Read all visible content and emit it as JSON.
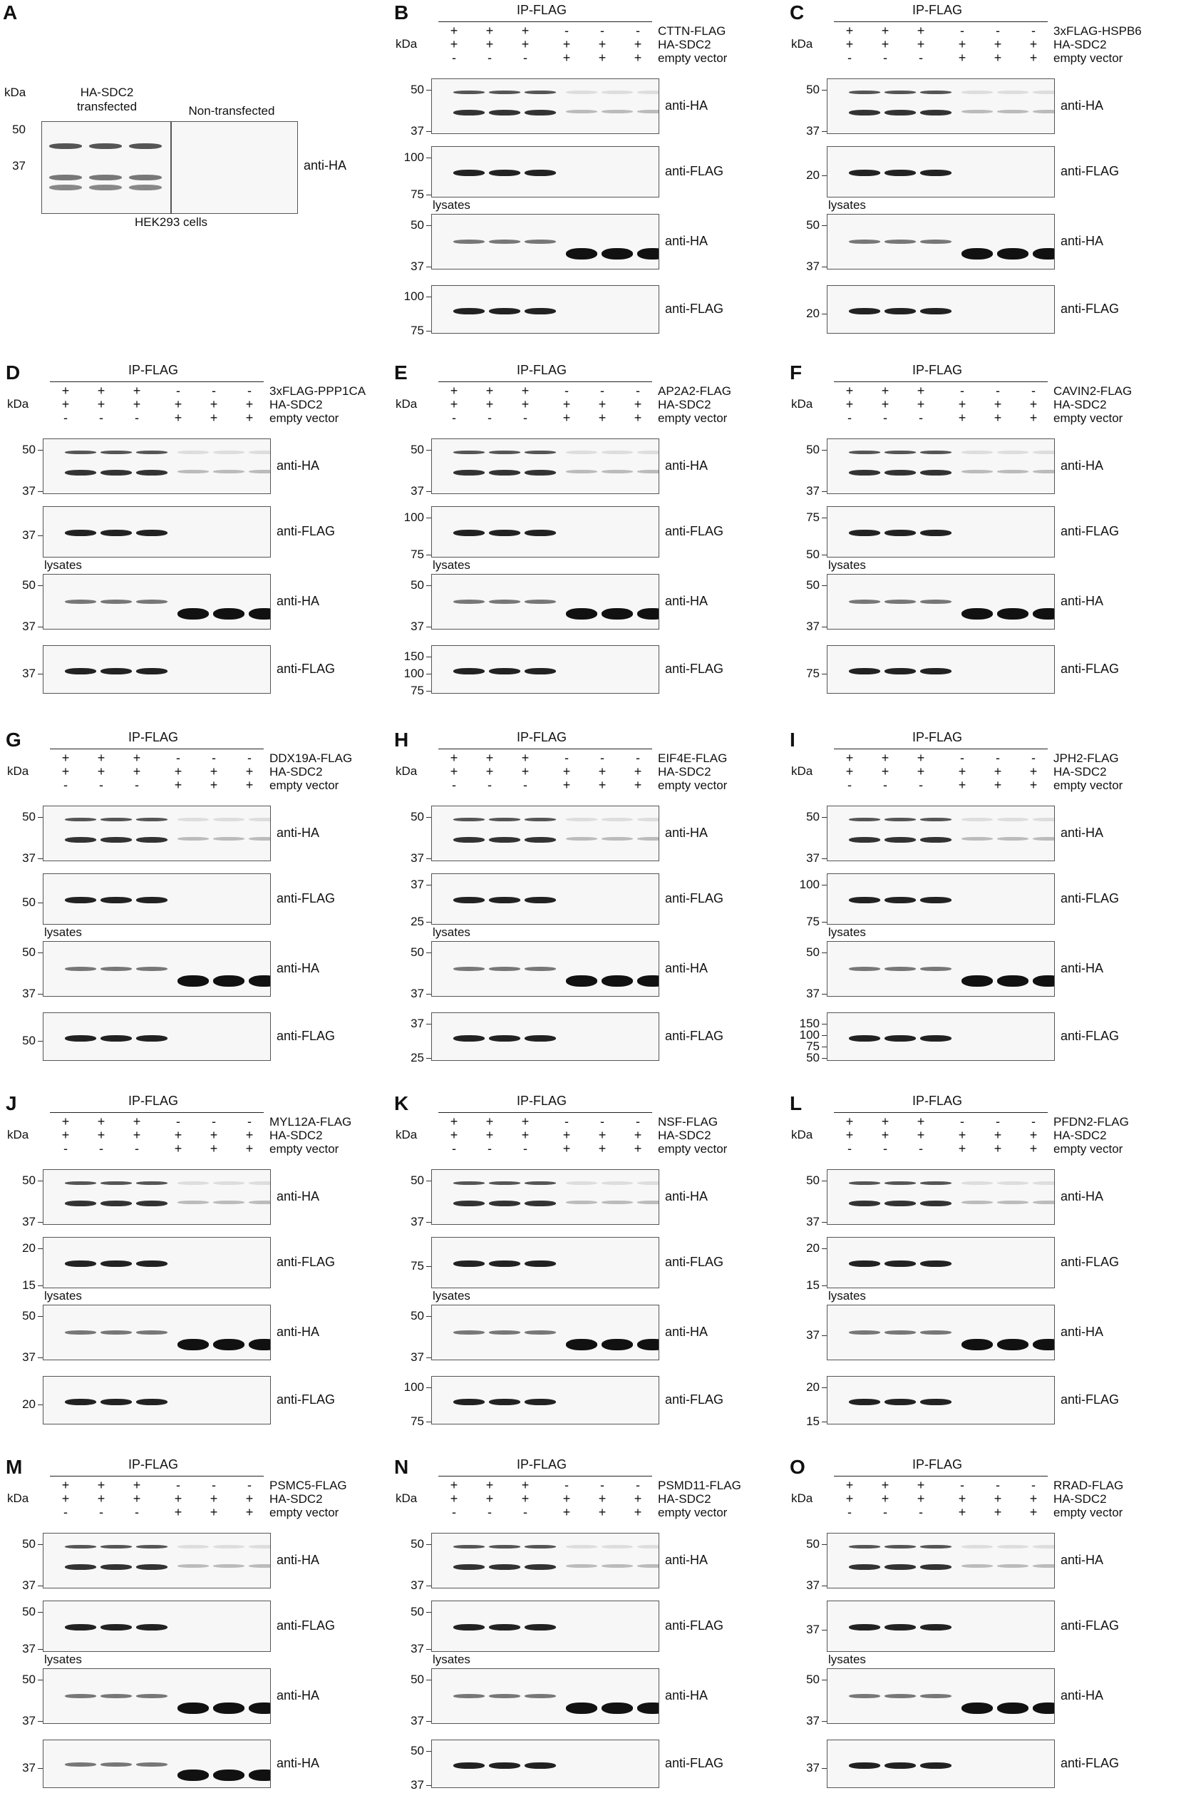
{
  "panels": [
    {
      "letter": "A",
      "kda": "kDa",
      "groups": [
        "HA-SDC2\ntransfected",
        "Non-transfected"
      ],
      "markers": [
        "50",
        "37"
      ],
      "antibody": "anti-HA",
      "caption": "HEK293 cells"
    },
    {
      "letter": "B",
      "ip": "IP-FLAG",
      "kda": "kDa",
      "conditions": [
        {
          "label": "CTTN-FLAG",
          "signs": [
            "+",
            "+",
            "+",
            "-",
            "-",
            "-"
          ]
        },
        {
          "label": "HA-SDC2",
          "signs": [
            "+",
            "+",
            "+",
            "+",
            "+",
            "+"
          ]
        },
        {
          "label": "empty vector",
          "signs": [
            "-",
            "-",
            "-",
            "+",
            "+",
            "+"
          ]
        }
      ],
      "lysates": "lysates",
      "blots": [
        {
          "antibody": "anti-HA",
          "markers": [
            "50",
            "37"
          ]
        },
        {
          "antibody": "anti-FLAG",
          "markers": [
            "100",
            "75"
          ]
        },
        {
          "antibody": "anti-HA",
          "markers": [
            "50",
            "37"
          ]
        },
        {
          "antibody": "anti-FLAG",
          "markers": [
            "100",
            "75"
          ]
        }
      ]
    },
    {
      "letter": "C",
      "ip": "IP-FLAG",
      "kda": "kDa",
      "conditions": [
        {
          "label": "3xFLAG-HSPB6",
          "signs": [
            "+",
            "+",
            "+",
            "-",
            "-",
            "-"
          ]
        },
        {
          "label": "HA-SDC2",
          "signs": [
            "+",
            "+",
            "+",
            "+",
            "+",
            "+"
          ]
        },
        {
          "label": "empty vector",
          "signs": [
            "-",
            "-",
            "-",
            "+",
            "+",
            "+"
          ]
        }
      ],
      "lysates": "lysates",
      "blots": [
        {
          "antibody": "anti-HA",
          "markers": [
            "50",
            "37"
          ]
        },
        {
          "antibody": "anti-FLAG",
          "markers": [
            "20"
          ]
        },
        {
          "antibody": "anti-HA",
          "markers": [
            "50",
            "37"
          ]
        },
        {
          "antibody": "anti-FLAG",
          "markers": [
            "20"
          ]
        }
      ]
    },
    {
      "letter": "D",
      "ip": "IP-FLAG",
      "kda": "kDa",
      "conditions": [
        {
          "label": "3xFLAG-PPP1CA",
          "signs": [
            "+",
            "+",
            "+",
            "-",
            "-",
            "-"
          ]
        },
        {
          "label": "HA-SDC2",
          "signs": [
            "+",
            "+",
            "+",
            "+",
            "+",
            "+"
          ]
        },
        {
          "label": "empty vector",
          "signs": [
            "-",
            "-",
            "-",
            "+",
            "+",
            "+"
          ]
        }
      ],
      "lysates": "lysates",
      "blots": [
        {
          "antibody": "anti-HA",
          "markers": [
            "50",
            "37"
          ]
        },
        {
          "antibody": "anti-FLAG",
          "markers": [
            "37"
          ]
        },
        {
          "antibody": "anti-HA",
          "markers": [
            "50",
            "37"
          ]
        },
        {
          "antibody": "anti-FLAG",
          "markers": [
            "37"
          ]
        }
      ]
    },
    {
      "letter": "E",
      "ip": "IP-FLAG",
      "kda": "kDa",
      "conditions": [
        {
          "label": "AP2A2-FLAG",
          "signs": [
            "+",
            "+",
            "+",
            "-",
            "-",
            "-"
          ]
        },
        {
          "label": "HA-SDC2",
          "signs": [
            "+",
            "+",
            "+",
            "+",
            "+",
            "+"
          ]
        },
        {
          "label": "empty vector",
          "signs": [
            "-",
            "-",
            "-",
            "+",
            "+",
            "+"
          ]
        }
      ],
      "lysates": "lysates",
      "blots": [
        {
          "antibody": "anti-HA",
          "markers": [
            "50",
            "37"
          ]
        },
        {
          "antibody": "anti-FLAG",
          "markers": [
            "100",
            "75"
          ]
        },
        {
          "antibody": "anti-HA",
          "markers": [
            "50",
            "37"
          ]
        },
        {
          "antibody": "anti-FLAG",
          "markers": [
            "150",
            "100",
            "75"
          ]
        }
      ]
    },
    {
      "letter": "F",
      "ip": "IP-FLAG",
      "kda": "kDa",
      "conditions": [
        {
          "label": "CAVIN2-FLAG",
          "signs": [
            "+",
            "+",
            "+",
            "-",
            "-",
            "-"
          ]
        },
        {
          "label": "HA-SDC2",
          "signs": [
            "+",
            "+",
            "+",
            "+",
            "+",
            "+"
          ]
        },
        {
          "label": "empty vector",
          "signs": [
            "-",
            "-",
            "-",
            "+",
            "+",
            "+"
          ]
        }
      ],
      "lysates": "lysates",
      "blots": [
        {
          "antibody": "anti-HA",
          "markers": [
            "50",
            "37"
          ]
        },
        {
          "antibody": "anti-FLAG",
          "markers": [
            "75",
            "50"
          ]
        },
        {
          "antibody": "anti-HA",
          "markers": [
            "50",
            "37"
          ]
        },
        {
          "antibody": "anti-FLAG",
          "markers": [
            "75"
          ]
        }
      ]
    },
    {
      "letter": "G",
      "ip": "IP-FLAG",
      "kda": "kDa",
      "conditions": [
        {
          "label": "DDX19A-FLAG",
          "signs": [
            "+",
            "+",
            "+",
            "-",
            "-",
            "-"
          ]
        },
        {
          "label": "HA-SDC2",
          "signs": [
            "+",
            "+",
            "+",
            "+",
            "+",
            "+"
          ]
        },
        {
          "label": "empty vector",
          "signs": [
            "-",
            "-",
            "-",
            "+",
            "+",
            "+"
          ]
        }
      ],
      "lysates": "lysates",
      "blots": [
        {
          "antibody": "anti-HA",
          "markers": [
            "50",
            "37"
          ]
        },
        {
          "antibody": "anti-FLAG",
          "markers": [
            "50"
          ]
        },
        {
          "antibody": "anti-HA",
          "markers": [
            "50",
            "37"
          ]
        },
        {
          "antibody": "anti-FLAG",
          "markers": [
            "50"
          ]
        }
      ]
    },
    {
      "letter": "H",
      "ip": "IP-FLAG",
      "kda": "kDa",
      "conditions": [
        {
          "label": "EIF4E-FLAG",
          "signs": [
            "+",
            "+",
            "+",
            "-",
            "-",
            "-"
          ]
        },
        {
          "label": "HA-SDC2",
          "signs": [
            "+",
            "+",
            "+",
            "+",
            "+",
            "+"
          ]
        },
        {
          "label": "empty vector",
          "signs": [
            "-",
            "-",
            "-",
            "+",
            "+",
            "+"
          ]
        }
      ],
      "lysates": "lysates",
      "blots": [
        {
          "antibody": "anti-HA",
          "markers": [
            "50",
            "37"
          ]
        },
        {
          "antibody": "anti-FLAG",
          "markers": [
            "37",
            "25"
          ]
        },
        {
          "antibody": "anti-HA",
          "markers": [
            "50",
            "37"
          ]
        },
        {
          "antibody": "anti-FLAG",
          "markers": [
            "37",
            "25"
          ]
        }
      ]
    },
    {
      "letter": "I",
      "ip": "IP-FLAG",
      "kda": "kDa",
      "conditions": [
        {
          "label": "JPH2-FLAG",
          "signs": [
            "+",
            "+",
            "+",
            "-",
            "-",
            "-"
          ]
        },
        {
          "label": "HA-SDC2",
          "signs": [
            "+",
            "+",
            "+",
            "+",
            "+",
            "+"
          ]
        },
        {
          "label": "empty vector",
          "signs": [
            "-",
            "-",
            "-",
            "+",
            "+",
            "+"
          ]
        }
      ],
      "lysates": "lysates",
      "blots": [
        {
          "antibody": "anti-HA",
          "markers": [
            "50",
            "37"
          ]
        },
        {
          "antibody": "anti-FLAG",
          "markers": [
            "100",
            "75"
          ]
        },
        {
          "antibody": "anti-HA",
          "markers": [
            "50",
            "37"
          ]
        },
        {
          "antibody": "anti-FLAG",
          "markers": [
            "150",
            "100",
            "75",
            "50"
          ]
        }
      ]
    },
    {
      "letter": "J",
      "ip": "IP-FLAG",
      "kda": "kDa",
      "conditions": [
        {
          "label": "MYL12A-FLAG",
          "signs": [
            "+",
            "+",
            "+",
            "-",
            "-",
            "-"
          ]
        },
        {
          "label": "HA-SDC2",
          "signs": [
            "+",
            "+",
            "+",
            "+",
            "+",
            "+"
          ]
        },
        {
          "label": "empty vector",
          "signs": [
            "-",
            "-",
            "-",
            "+",
            "+",
            "+"
          ]
        }
      ],
      "lysates": "lysates",
      "blots": [
        {
          "antibody": "anti-HA",
          "markers": [
            "50",
            "37"
          ]
        },
        {
          "antibody": "anti-FLAG",
          "markers": [
            "20",
            "15"
          ]
        },
        {
          "antibody": "anti-HA",
          "markers": [
            "50",
            "37"
          ]
        },
        {
          "antibody": "anti-FLAG",
          "markers": [
            "20"
          ]
        }
      ]
    },
    {
      "letter": "K",
      "ip": "IP-FLAG",
      "kda": "kDa",
      "conditions": [
        {
          "label": "NSF-FLAG",
          "signs": [
            "+",
            "+",
            "+",
            "-",
            "-",
            "-"
          ]
        },
        {
          "label": "HA-SDC2",
          "signs": [
            "+",
            "+",
            "+",
            "+",
            "+",
            "+"
          ]
        },
        {
          "label": "empty vector",
          "signs": [
            "-",
            "-",
            "-",
            "+",
            "+",
            "+"
          ]
        }
      ],
      "lysates": "lysates",
      "blots": [
        {
          "antibody": "anti-HA",
          "markers": [
            "50",
            "37"
          ]
        },
        {
          "antibody": "anti-FLAG",
          "markers": [
            "75"
          ]
        },
        {
          "antibody": "anti-HA",
          "markers": [
            "50",
            "37"
          ]
        },
        {
          "antibody": "anti-FLAG",
          "markers": [
            "100",
            "75"
          ]
        }
      ]
    },
    {
      "letter": "L",
      "ip": "IP-FLAG",
      "kda": "kDa",
      "conditions": [
        {
          "label": "PFDN2-FLAG",
          "signs": [
            "+",
            "+",
            "+",
            "-",
            "-",
            "-"
          ]
        },
        {
          "label": "HA-SDC2",
          "signs": [
            "+",
            "+",
            "+",
            "+",
            "+",
            "+"
          ]
        },
        {
          "label": "empty vector",
          "signs": [
            "-",
            "-",
            "-",
            "+",
            "+",
            "+"
          ]
        }
      ],
      "lysates": "lysates",
      "blots": [
        {
          "antibody": "anti-HA",
          "markers": [
            "50",
            "37"
          ]
        },
        {
          "antibody": "anti-FLAG",
          "markers": [
            "20",
            "15"
          ]
        },
        {
          "antibody": "anti-HA",
          "markers": [
            "37"
          ]
        },
        {
          "antibody": "anti-FLAG",
          "markers": [
            "20",
            "15"
          ]
        }
      ]
    },
    {
      "letter": "M",
      "ip": "IP-FLAG",
      "kda": "kDa",
      "conditions": [
        {
          "label": "PSMC5-FLAG",
          "signs": [
            "+",
            "+",
            "+",
            "-",
            "-",
            "-"
          ]
        },
        {
          "label": "HA-SDC2",
          "signs": [
            "+",
            "+",
            "+",
            "+",
            "+",
            "+"
          ]
        },
        {
          "label": "empty vector",
          "signs": [
            "-",
            "-",
            "-",
            "+",
            "+",
            "+"
          ]
        }
      ],
      "lysates": "lysates",
      "blots": [
        {
          "antibody": "anti-HA",
          "markers": [
            "50",
            "37"
          ]
        },
        {
          "antibody": "anti-FLAG",
          "markers": [
            "50",
            "37"
          ]
        },
        {
          "antibody": "anti-HA",
          "markers": [
            "50",
            "37"
          ]
        },
        {
          "antibody": "anti-HA",
          "markers": [
            "37"
          ]
        }
      ]
    },
    {
      "letter": "N",
      "ip": "IP-FLAG",
      "kda": "kDa",
      "conditions": [
        {
          "label": "PSMD11-FLAG",
          "signs": [
            "+",
            "+",
            "+",
            "-",
            "-",
            "-"
          ]
        },
        {
          "label": "HA-SDC2",
          "signs": [
            "+",
            "+",
            "+",
            "+",
            "+",
            "+"
          ]
        },
        {
          "label": "empty vector",
          "signs": [
            "-",
            "-",
            "-",
            "+",
            "+",
            "+"
          ]
        }
      ],
      "lysates": "lysates",
      "blots": [
        {
          "antibody": "anti-HA",
          "markers": [
            "50",
            "37"
          ]
        },
        {
          "antibody": "anti-FLAG",
          "markers": [
            "50",
            "37"
          ]
        },
        {
          "antibody": "anti-HA",
          "markers": [
            "50",
            "37"
          ]
        },
        {
          "antibody": "anti-FLAG",
          "markers": [
            "50",
            "37"
          ]
        }
      ]
    },
    {
      "letter": "O",
      "ip": "IP-FLAG",
      "kda": "kDa",
      "conditions": [
        {
          "label": "RRAD-FLAG",
          "signs": [
            "+",
            "+",
            "+",
            "-",
            "-",
            "-"
          ]
        },
        {
          "label": "HA-SDC2",
          "signs": [
            "+",
            "+",
            "+",
            "+",
            "+",
            "+"
          ]
        },
        {
          "label": "empty vector",
          "signs": [
            "-",
            "-",
            "-",
            "+",
            "+",
            "+"
          ]
        }
      ],
      "lysates": "lysates",
      "blots": [
        {
          "antibody": "anti-HA",
          "markers": [
            "50",
            "37"
          ]
        },
        {
          "antibody": "anti-FLAG",
          "markers": [
            "37"
          ]
        },
        {
          "antibody": "anti-HA",
          "markers": [
            "50",
            "37"
          ]
        },
        {
          "antibody": "anti-FLAG",
          "markers": [
            "37"
          ]
        }
      ]
    }
  ]
}
